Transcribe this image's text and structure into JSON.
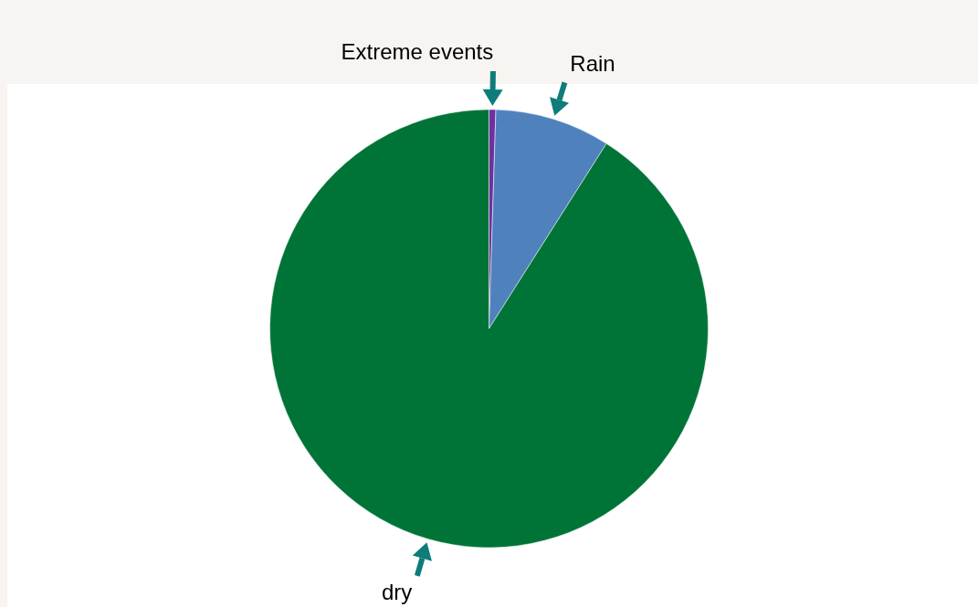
{
  "chart_data": {
    "type": "pie",
    "categories": [
      "Extreme events",
      "Rain",
      "dry"
    ],
    "values": [
      0.5,
      8.5,
      91
    ],
    "colors": [
      "#7030a0",
      "#4f81bd",
      "#007437"
    ]
  }
}
